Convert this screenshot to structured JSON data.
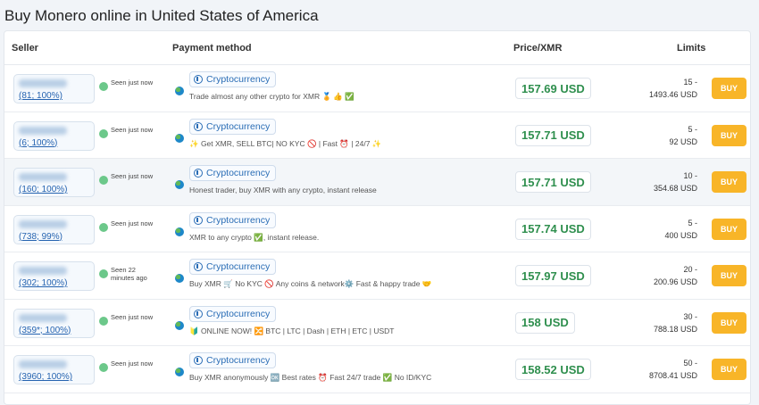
{
  "page": {
    "title": "Buy Monero online in United States of America"
  },
  "table": {
    "headers": {
      "seller": "Seller",
      "payment": "Payment method",
      "price": "Price/XMR",
      "limits": "Limits"
    },
    "buy_label": "BUY",
    "rows": [
      {
        "stats": "(81; 100%)",
        "seen": "Seen just now",
        "method": "Cryptocurrency",
        "desc": "Trade almost any other crypto for XMR 🏅 👍 ✅",
        "price": "157.69 USD",
        "limit_min": "15 -",
        "limit_max": "1493.46 USD"
      },
      {
        "stats": "(6; 100%)",
        "seen": "Seen just now",
        "method": "Cryptocurrency",
        "desc": "✨ Get XMR, SELL BTC| NO KYC 🚫 | Fast ⏰ | 24/7 ✨",
        "price": "157.71 USD",
        "limit_min": "5 -",
        "limit_max": "92 USD"
      },
      {
        "stats": "(160; 100%)",
        "seen": "Seen just now",
        "method": "Cryptocurrency",
        "desc": "Honest trader, buy XMR with any crypto, instant release",
        "price": "157.71 USD",
        "limit_min": "10 -",
        "limit_max": "354.68 USD"
      },
      {
        "stats": "(738; 99%)",
        "seen": "Seen just now",
        "method": "Cryptocurrency",
        "desc": "XMR to any crypto ✅, instant release.",
        "price": "157.74 USD",
        "limit_min": "5 -",
        "limit_max": "400 USD"
      },
      {
        "stats": "(302; 100%)",
        "seen": "Seen 22 minutes ago",
        "method": "Cryptocurrency",
        "desc": "Buy XMR 🛒 No KYC 🚫 Any coins & network⚙️ Fast & happy trade 🤝",
        "price": "157.97 USD",
        "limit_min": "20 -",
        "limit_max": "200.96 USD"
      },
      {
        "stats": "(359*; 100%)",
        "seen": "Seen just now",
        "method": "Cryptocurrency",
        "desc": "🔰 ONLINE NOW! 🔀 BTC | LTC | Dash | ETH | ETC | USDT",
        "price": "158 USD",
        "limit_min": "30 -",
        "limit_max": "788.18 USD"
      },
      {
        "stats": "(3960; 100%)",
        "seen": "Seen just now",
        "method": "Cryptocurrency",
        "desc": "Buy XMR anonymously 🆗 Best rates ⏰ Fast 24/7 trade ✅ No ID/KYC",
        "price": "158.52 USD",
        "limit_min": "50 -",
        "limit_max": "8708.41 USD"
      }
    ]
  }
}
